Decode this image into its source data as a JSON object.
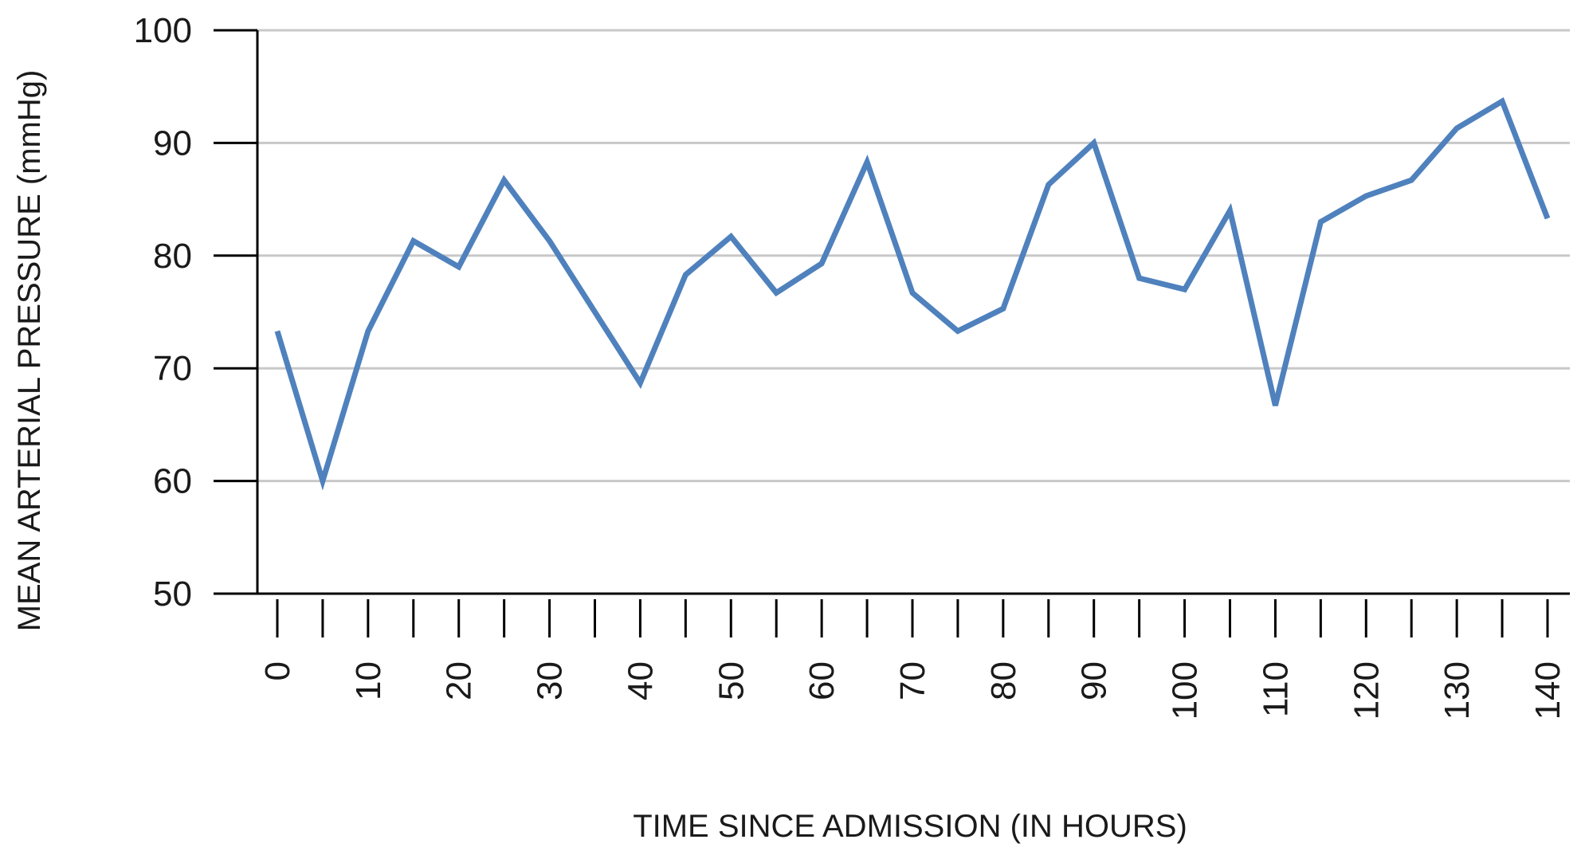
{
  "chart_data": {
    "type": "line",
    "xlabel": "TIME SINCE ADMISSION (IN HOURS)",
    "ylabel": "MEAN ARTERIAL PRESSURE (mmHg)",
    "xlim": [
      0,
      140
    ],
    "ylim": [
      50,
      100
    ],
    "x_ticks": [
      0,
      10,
      20,
      30,
      40,
      50,
      60,
      70,
      80,
      90,
      100,
      110,
      120,
      130,
      140
    ],
    "y_ticks": [
      50,
      60,
      70,
      80,
      90,
      100
    ],
    "grid": true,
    "legend": "none",
    "colors": {
      "series": "#4f81bd",
      "grid": "#c8c8c8",
      "axis": "#000000"
    },
    "series": [
      {
        "x": [
          0,
          5,
          10,
          15,
          20,
          25,
          30,
          35,
          40,
          45,
          50,
          55,
          60,
          65,
          70,
          75,
          80,
          85,
          90,
          95,
          100,
          105,
          110,
          115,
          120,
          125,
          130,
          135,
          140
        ],
        "values": [
          73.3,
          60,
          73.3,
          81.3,
          79,
          86.7,
          81.3,
          75,
          68.7,
          78.3,
          81.7,
          76.7,
          79.3,
          88.3,
          76.7,
          73.3,
          75.3,
          86.3,
          90,
          78,
          77,
          84,
          66.7,
          83,
          85.3,
          86.7,
          91.3,
          93.7,
          83.3
        ]
      }
    ]
  }
}
